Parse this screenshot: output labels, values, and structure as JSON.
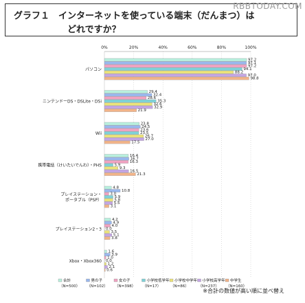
{
  "title": {
    "line1": "グラフ１　インターネットを使っている端末（だんまつ）は",
    "line2": "どれですか？"
  },
  "watermark": "RBBTODAY.COM",
  "footnote": "※合計の数値が高い順に並べ替え",
  "colors": {
    "series": [
      "#b8f0de",
      "#9ab8ee",
      "#f1a3c2",
      "#7fd2d8",
      "#ece37a",
      "#c4a6e4",
      "#f2b489"
    ],
    "axis": "#888888",
    "grid": "#bbbbbb"
  },
  "chart_data": {
    "type": "bar",
    "orientation": "horizontal",
    "xlim": [
      0,
      100
    ],
    "ticks": [
      "0%",
      "20%",
      "40%",
      "60%",
      "80%",
      "100%"
    ],
    "categories": [
      "パソコン",
      "ニンテンドーDS・DSLite・DSi",
      "Wii",
      "携帯電話（けいたいでんわ）・PHS",
      "プレイステーション・ポータブル（PSP）",
      "プレイステーション2・3",
      "Xbox・Xbox360"
    ],
    "category_lines": [
      [
        "パソコン"
      ],
      [
        "ニンテンドーDS・DSLite・DSi"
      ],
      [
        "Wii"
      ],
      [
        "携帯電話（けいたいでんわ）・PHS"
      ],
      [
        "プレイステーション・",
        "ポータブル（PSP）"
      ],
      [
        "プレイステーション2・3"
      ],
      [
        "Xbox・Xbox360"
      ]
    ],
    "series": [
      {
        "name": "合計",
        "sub": "（N=500）",
        "values": [
          97.2,
          29.4,
          23.8,
          16.4,
          4.8,
          4.2,
          1.6
        ]
      },
      {
        "name": "男の子",
        "sub": "（N=102）",
        "values": [
          97.1,
          32.4,
          24.5,
          16.7,
          10.8,
          4.9,
          3.9
        ]
      },
      {
        "name": "女の子",
        "sub": "（N=398）",
        "values": [
          97.2,
          28.6,
          23.6,
          16.3,
          3.0,
          4.0,
          1.0
        ]
      },
      {
        "name": "小学校低学年",
        "sub": "（N=17）",
        "values": [
          94.1,
          35.3,
          23.5,
          5.9,
          5.9,
          0.0,
          0.0
        ]
      },
      {
        "name": "小学校中学年",
        "sub": "（N=86）",
        "values": [
          88.2,
          32.6,
          26.7,
          9.3,
          5.8,
          3.5,
          1.2
        ]
      },
      {
        "name": "小学校高学年",
        "sub": "（N=237）",
        "values": [
          97.0,
          32.9,
          27.0,
          16.5,
          5.5,
          5.1,
          2.1
        ]
      },
      {
        "name": "中学生",
        "sub": "（N=160）",
        "values": [
          98.8,
          21.9,
          17.5,
          21.3,
          3.1,
          3.8,
          0.6
        ]
      }
    ],
    "value_labels": [
      [
        "97.2",
        "29.4",
        "23.8",
        "16.4",
        "4.8",
        "4.2",
        "1.6"
      ],
      [
        "97.1",
        "32.4",
        "24.5",
        "16.7",
        "10.8",
        "4.9",
        "3.9"
      ],
      [
        "97.2",
        "28.6",
        "23.6",
        "16.3",
        "3.0",
        "4.0",
        "1.0"
      ],
      [
        "94.1",
        "35.3",
        "23.5",
        "5.9",
        "5.9",
        "0.0",
        "0.0"
      ],
      [
        "88.2",
        "32.6",
        "26.7",
        "9.3",
        "5.8",
        "3.5",
        "1.2"
      ],
      [
        "97.0",
        "32.9",
        "27.0",
        "16.5",
        "5.5",
        "5.1",
        "2.1"
      ],
      [
        "98.8",
        "21.9",
        "17.5",
        "21.3",
        "3.1",
        "3.8",
        "0.6"
      ]
    ]
  }
}
